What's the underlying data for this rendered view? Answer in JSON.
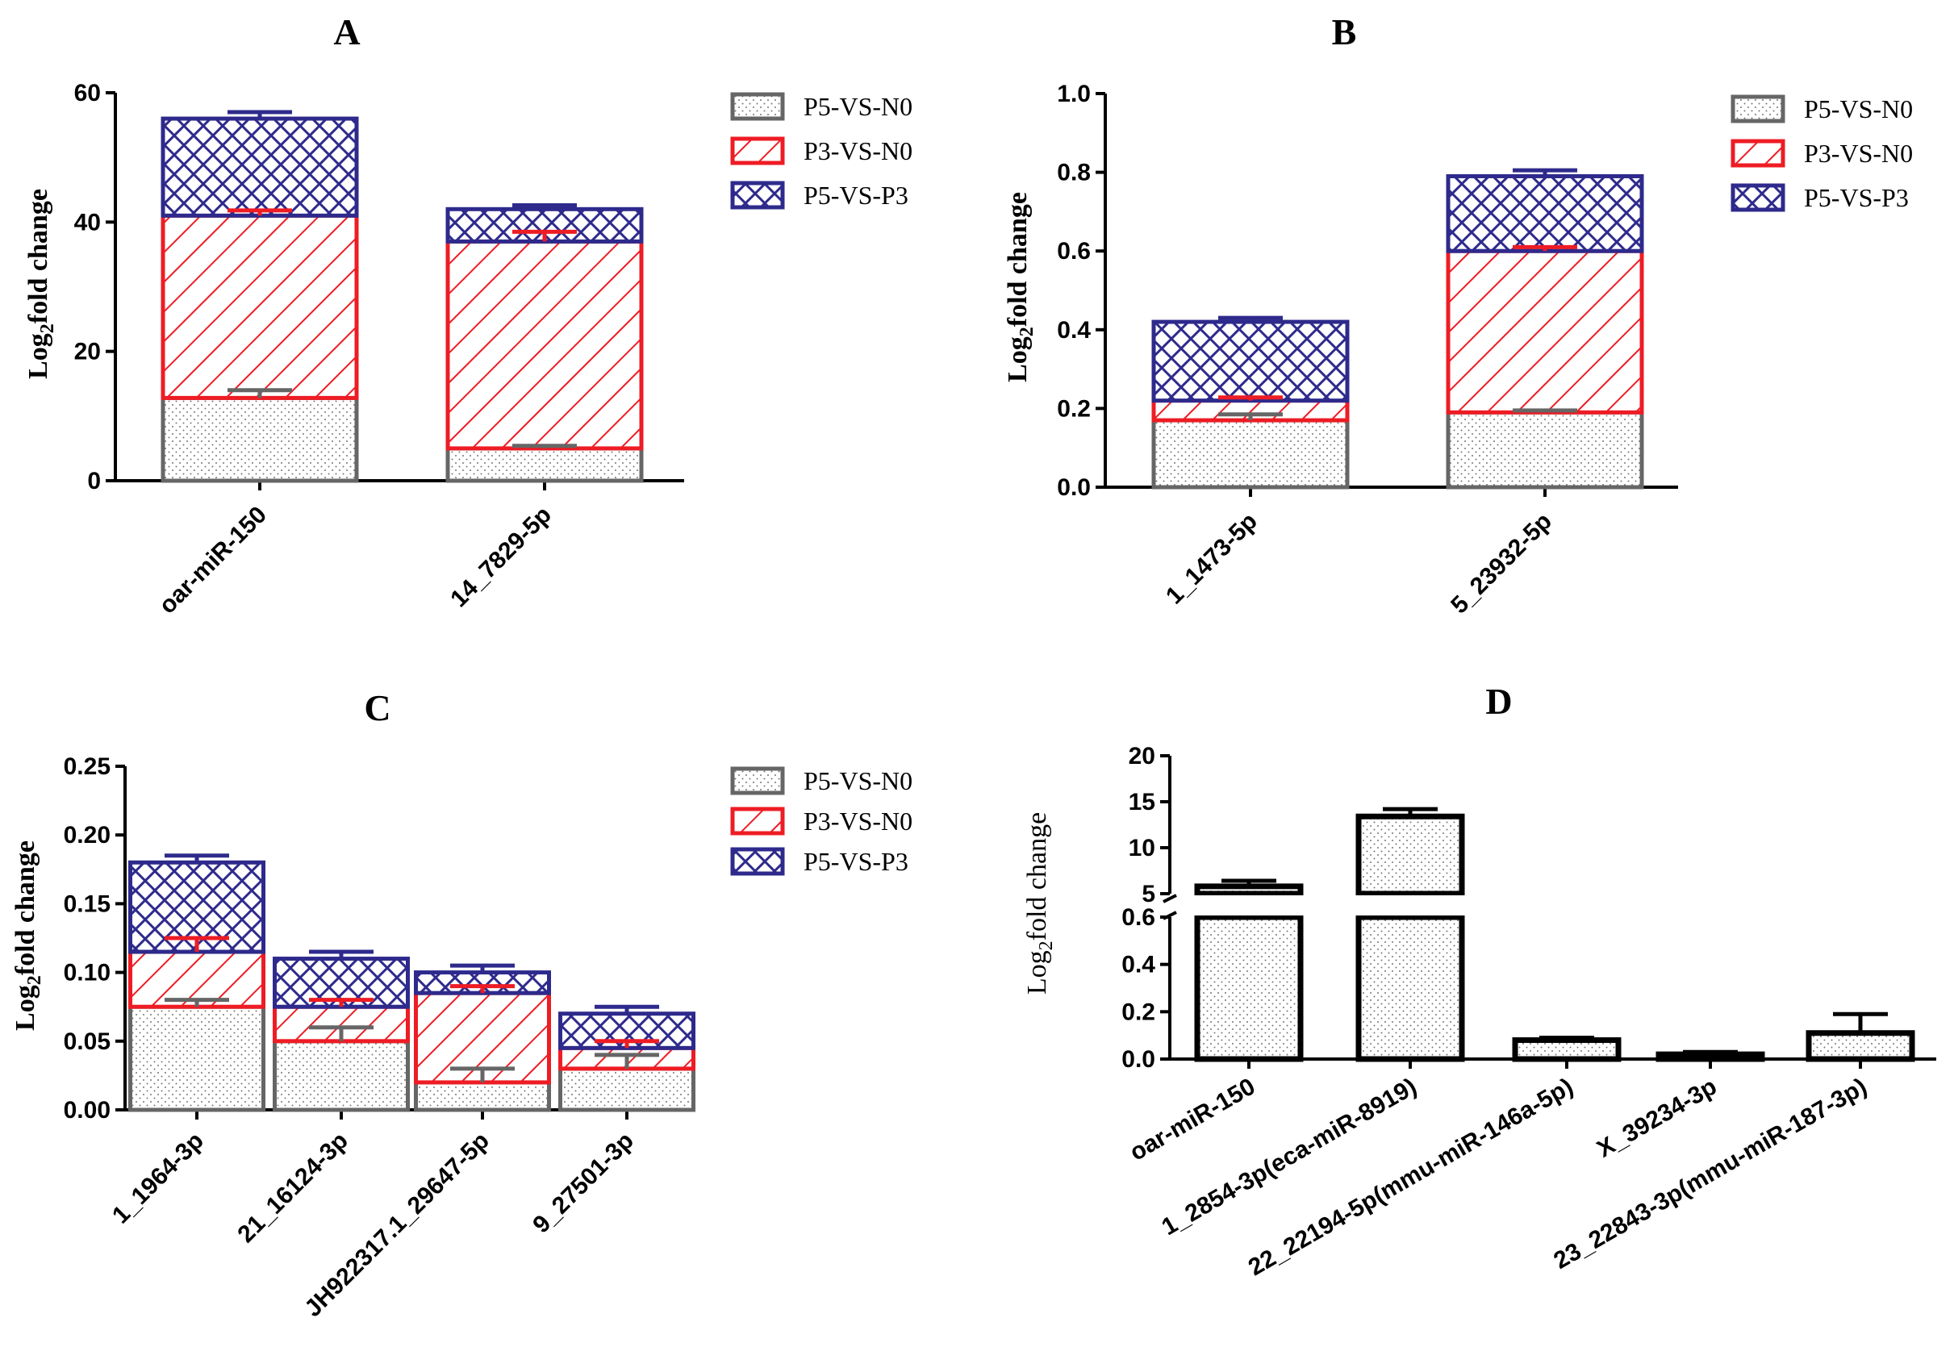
{
  "colors": {
    "P5-VS-N0": "#666666",
    "P3-VS-N0": "#ee1c24",
    "P5-VS-P3": "#2e2a8c",
    "single": "#000000"
  },
  "chart_data": [
    {
      "panel": "A",
      "type": "bar",
      "stacked": true,
      "title": "A",
      "ylabel_main": "Log",
      "ylabel_sub": "2",
      "ylabel_rest": "fold change",
      "ylim": [
        0,
        60
      ],
      "yticks": [
        0,
        20,
        40,
        60
      ],
      "tick_labels": [
        "0",
        "20",
        "40",
        "60"
      ],
      "categories": [
        "oar-miR-150",
        "14_7829-5p"
      ],
      "series": [
        {
          "name": "P5-VS-N0",
          "values": [
            12.8,
            5.0
          ],
          "errors": [
            1.2,
            0.4
          ]
        },
        {
          "name": "P3-VS-N0",
          "values": [
            28.2,
            32.0
          ],
          "errors": [
            0.8,
            1.5
          ]
        },
        {
          "name": "P5-VS-P3",
          "values": [
            15.0,
            5.0
          ],
          "errors": [
            1.0,
            0.6
          ]
        }
      ],
      "legend": [
        "P5-VS-N0",
        "P3-VS-N0",
        "P5-VS-P3"
      ]
    },
    {
      "panel": "B",
      "type": "bar",
      "stacked": true,
      "title": "B",
      "ylabel_main": "Log",
      "ylabel_sub": "2",
      "ylabel_rest": "fold change",
      "ylim": [
        0,
        1.0
      ],
      "yticks": [
        0,
        0.2,
        0.4,
        0.6,
        0.8,
        1.0
      ],
      "tick_labels": [
        "0.0",
        "0.2",
        "0.4",
        "0.6",
        "0.8",
        "1.0"
      ],
      "categories": [
        "1_1473-5p",
        "5_23932-5p"
      ],
      "series": [
        {
          "name": "P5-VS-N0",
          "values": [
            0.17,
            0.19
          ],
          "errors": [
            0.015,
            0.005
          ]
        },
        {
          "name": "P3-VS-N0",
          "values": [
            0.05,
            0.41
          ],
          "errors": [
            0.008,
            0.01
          ]
        },
        {
          "name": "P5-VS-P3",
          "values": [
            0.2,
            0.19
          ],
          "errors": [
            0.01,
            0.015
          ]
        }
      ],
      "legend": [
        "P5-VS-N0",
        "P3-VS-N0",
        "P5-VS-P3"
      ]
    },
    {
      "panel": "C",
      "type": "bar",
      "stacked": true,
      "title": "C",
      "ylabel_main": "Log",
      "ylabel_sub": "2",
      "ylabel_rest": "fold change",
      "ylim": [
        0,
        0.25
      ],
      "yticks": [
        0,
        0.05,
        0.1,
        0.15,
        0.2,
        0.25
      ],
      "tick_labels": [
        "0.00",
        "0.05",
        "0.10",
        "0.15",
        "0.20",
        "0.25"
      ],
      "categories": [
        "1_1964-3p",
        "21_16124-3p",
        "JH922317.1_29647-5p",
        "9_27501-3p"
      ],
      "series": [
        {
          "name": "P5-VS-N0",
          "values": [
            0.075,
            0.05,
            0.02,
            0.03
          ],
          "errors": [
            0.005,
            0.01,
            0.01,
            0.01
          ]
        },
        {
          "name": "P3-VS-N0",
          "values": [
            0.04,
            0.025,
            0.065,
            0.015
          ],
          "errors": [
            0.01,
            0.005,
            0.005,
            0.005
          ]
        },
        {
          "name": "P5-VS-P3",
          "values": [
            0.065,
            0.035,
            0.015,
            0.025
          ],
          "errors": [
            0.005,
            0.005,
            0.005,
            0.005
          ]
        }
      ],
      "legend": [
        "P5-VS-N0",
        "P3-VS-N0",
        "P5-VS-P3"
      ]
    },
    {
      "panel": "D",
      "type": "bar",
      "stacked": false,
      "broken_axis": true,
      "title": "D",
      "ylabel_main": "Log",
      "ylabel_sub": "2",
      "ylabel_rest": "fold change",
      "ylim_lower": [
        0,
        0.6
      ],
      "ylim_upper": [
        5,
        20
      ],
      "yticks_lower": [
        0,
        0.2,
        0.4,
        0.6
      ],
      "tick_labels_lower": [
        "0.0",
        "0.2",
        "0.4",
        "0.6"
      ],
      "yticks_upper": [
        5,
        10,
        15,
        20
      ],
      "tick_labels_upper": [
        "5",
        "10",
        "15",
        "20"
      ],
      "categories": [
        "oar-miR-150",
        "1_2854-3p(eca-miR-8919)",
        "22_22194-5p(mmu-miR-146a-5p)",
        "X_39234-3p",
        "23_22843-3p(mmu-miR-187-3p)"
      ],
      "values": [
        5.8,
        13.4,
        0.08,
        0.02,
        0.11
      ],
      "errors": [
        0.6,
        0.8,
        0.01,
        0.01,
        0.08
      ]
    }
  ]
}
